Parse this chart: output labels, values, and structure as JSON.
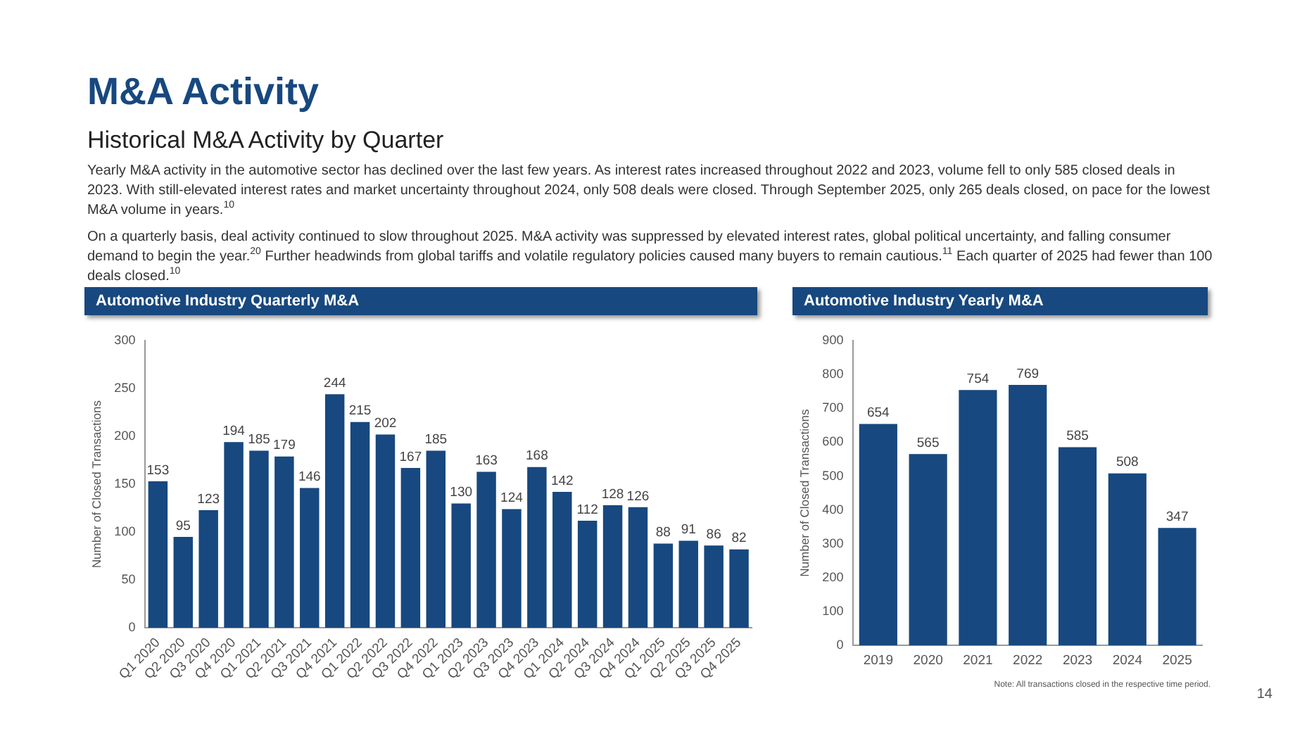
{
  "chart_data": [
    {
      "type": "bar",
      "title": "Automotive Industry Quarterly M&A",
      "ylabel": "Number of Closed Transactions",
      "annotations": [
        "M&A Activity",
        "Historical M&A Activity by Quarter",
        "Yearly M&A activity in the automotive sector has declined over the last few years. As interest rates increased throughout 2022 and 2023, volume fell to only 585 closed deals in 2023. With still-elevated interest rates and market uncertainty throughout 2024, only 508 deals were closed. Through September 2025, only 265 deals closed, on pace for the lowest M&A volume in years.$^{10}$",
        "On a quarterly basis, deal activity continued to slow throughout 2025. M&A activity was suppressed by elevated interest rates, global political uncertainty, and falling consumer demand to begin the year.$^{20}$ Further headwinds from global tariffs and volatile regulatory policies caused many buyers to remain cautious.$^{11}$ Each quarter of 2025 had fewer than 100 deals closed.$^{10}$"
      ],
      "categories": [
        "Q1 2020",
        "Q2 2020",
        "Q3 2020",
        "Q4 2020",
        "Q1 2021",
        "Q2 2021",
        "Q3 2021",
        "Q4 2021",
        "Q1 2022",
        "Q2 2022",
        "Q3 2022",
        "Q4 2022",
        "Q1 2023",
        "Q2 2023",
        "Q3 2023",
        "Q4 2023",
        "Q1 2024",
        "Q2 2024",
        "Q3 2024",
        "Q4 2024",
        "Q1 2025",
        "Q2 2025",
        "Q3 2025",
        "Q4 2025"
      ],
      "values": [
        153,
        95,
        123,
        194,
        185,
        179,
        146,
        244,
        215,
        202,
        167,
        185,
        130,
        163,
        124,
        168,
        142,
        112,
        128,
        126,
        88,
        91,
        86,
        82
      ],
      "color": "#17487f",
      "ylim": [
        0,
        300
      ],
      "yticks": [
        0,
        50,
        100,
        150,
        200,
        250,
        300
      ],
      "grid": false,
      "legend": false,
      "data_labels": true
    },
    {
      "type": "bar",
      "title": "Automotive Industry Yearly M&A",
      "ylabel": "Number of Closed Transactions",
      "annotations": [
        "Note: All transactions closed in the respective time period.",
        "14"
      ],
      "categories": [
        "2019",
        "2020",
        "2021",
        "2022",
        "2023",
        "2024",
        "2025"
      ],
      "values": [
        654,
        565,
        754,
        769,
        585,
        508,
        347
      ],
      "color": "#17487f",
      "ylim": [
        0,
        900
      ],
      "yticks": [
        0,
        100,
        200,
        300,
        400,
        500,
        600,
        700,
        800,
        900
      ],
      "grid": false,
      "legend": false,
      "data_labels": true
    }
  ]
}
